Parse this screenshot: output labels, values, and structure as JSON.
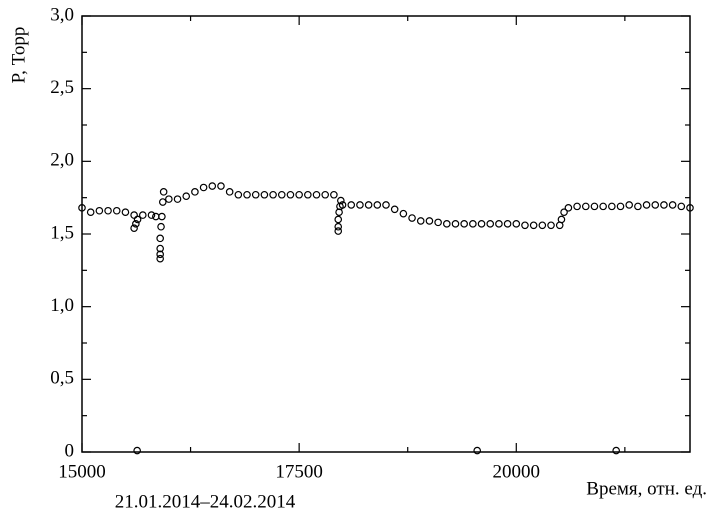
{
  "chart_data": {
    "type": "scatter",
    "y_label": "P, Торр",
    "x_label": "Время, отн. ед.",
    "subtitle": "21.01.2014–24.02.2014",
    "color": "#000000",
    "xlim": [
      15000,
      22000
    ],
    "ylim": [
      0,
      3
    ],
    "xticks": [
      15000,
      17500,
      20000
    ],
    "xminorticks": [
      16250,
      18750,
      21250
    ],
    "yticks": [
      0,
      {
        "value": 0.5,
        "label": "0,5"
      },
      {
        "value": 1,
        "label": "1,0"
      },
      {
        "value": 1.5,
        "label": "1,5"
      },
      {
        "value": 2,
        "label": "2,0"
      },
      {
        "value": 2.5,
        "label": "2,5"
      },
      {
        "value": 3,
        "label": "3,0"
      }
    ],
    "yminorticks": [
      0.25,
      0.75,
      1.25,
      1.75,
      2.25,
      2.75
    ],
    "x": [
      15000,
      15100,
      15200,
      15300,
      15400,
      15500,
      15600,
      15600,
      15620,
      15640,
      15635,
      15700,
      15800,
      15850,
      15900,
      15900,
      15900,
      15900,
      15910,
      15920,
      15930,
      15940,
      16000,
      16100,
      16200,
      16300,
      16400,
      16500,
      16600,
      16700,
      16800,
      16900,
      17000,
      17100,
      17200,
      17300,
      17400,
      17500,
      17600,
      17700,
      17800,
      17900,
      17950,
      17950,
      17950,
      17960,
      17970,
      17980,
      18000,
      18100,
      18200,
      18300,
      18400,
      18500,
      18600,
      18700,
      18800,
      18900,
      19000,
      19100,
      19200,
      19300,
      19400,
      19500,
      19550,
      19600,
      19700,
      19800,
      19900,
      20000,
      20100,
      20200,
      20300,
      20400,
      20500,
      20520,
      20550,
      20600,
      20700,
      20800,
      20900,
      21000,
      21100,
      21150,
      21200,
      21300,
      21400,
      21500,
      21600,
      21700,
      21800,
      21900,
      22000
    ],
    "values": [
      1.68,
      1.65,
      1.66,
      1.66,
      1.66,
      1.65,
      1.63,
      1.54,
      1.57,
      1.6,
      0.01,
      1.63,
      1.63,
      1.62,
      1.33,
      1.36,
      1.4,
      1.47,
      1.55,
      1.62,
      1.72,
      1.79,
      1.74,
      1.74,
      1.76,
      1.79,
      1.82,
      1.83,
      1.83,
      1.79,
      1.77,
      1.77,
      1.77,
      1.77,
      1.77,
      1.77,
      1.77,
      1.77,
      1.77,
      1.77,
      1.77,
      1.77,
      1.52,
      1.55,
      1.6,
      1.65,
      1.69,
      1.73,
      1.7,
      1.7,
      1.7,
      1.7,
      1.7,
      1.7,
      1.67,
      1.64,
      1.61,
      1.59,
      1.59,
      1.58,
      1.57,
      1.57,
      1.57,
      1.57,
      0.01,
      1.57,
      1.57,
      1.57,
      1.57,
      1.57,
      1.56,
      1.56,
      1.56,
      1.56,
      1.56,
      1.6,
      1.65,
      1.68,
      1.69,
      1.69,
      1.69,
      1.69,
      1.69,
      0.01,
      1.69,
      1.7,
      1.69,
      1.7,
      1.7,
      1.7,
      1.7,
      1.69,
      1.68
    ]
  }
}
